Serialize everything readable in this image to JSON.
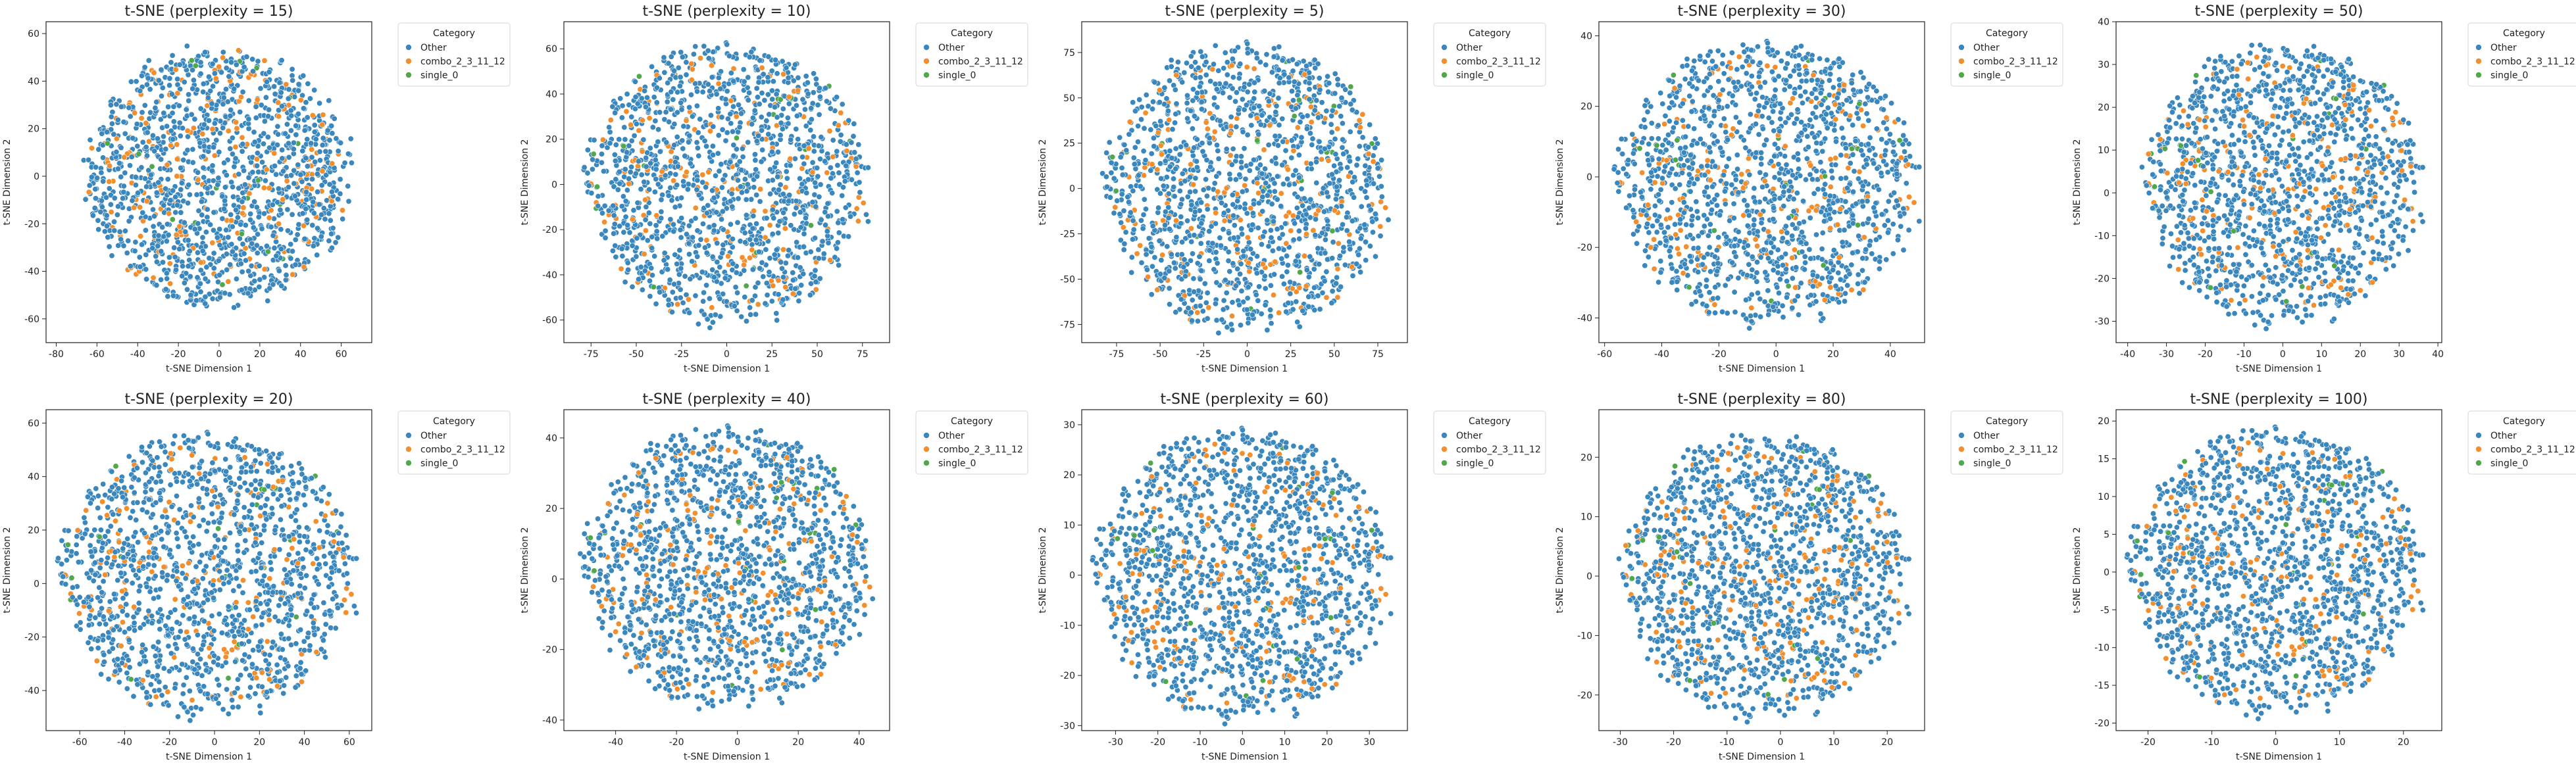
{
  "figure": {
    "colors": {
      "Other": "#3a87be",
      "combo_2_3_11_12": "#f28e2b",
      "single_0": "#4fa84a"
    }
  },
  "chart_data": [
    {
      "type": "scatter",
      "title": "t-SNE (perplexity = 15)",
      "xlabel": "t-SNE Dimension 1",
      "ylabel": "t-SNE Dimension 2",
      "xlim": [
        -85,
        75
      ],
      "ylim": [
        -70,
        65
      ],
      "xticks": [
        -80,
        -60,
        -40,
        -20,
        0,
        20,
        40,
        60
      ],
      "yticks": [
        -60,
        -40,
        -20,
        0,
        20,
        40,
        60
      ],
      "legend": {
        "title": "Category",
        "entries": [
          "Other",
          "combo_2_3_11_12",
          "single_0"
        ],
        "placement": "outside-upper-right"
      },
      "cloud": {
        "cx": 0,
        "cy": 0,
        "rx": 65,
        "ry": 55
      }
    },
    {
      "type": "scatter",
      "title": "t-SNE (perplexity = 10)",
      "xlabel": "t-SNE Dimension 1",
      "ylabel": "t-SNE Dimension 2",
      "xlim": [
        -90,
        90
      ],
      "ylim": [
        -70,
        72
      ],
      "xticks": [
        -75,
        -50,
        -25,
        0,
        25,
        50,
        75
      ],
      "yticks": [
        -60,
        -40,
        -20,
        0,
        20,
        40,
        60
      ],
      "legend": {
        "title": "Category",
        "entries": [
          "Other",
          "combo_2_3_11_12",
          "single_0"
        ],
        "placement": "outside-upper-right"
      },
      "cloud": {
        "cx": 0,
        "cy": 0,
        "rx": 78,
        "ry": 62
      }
    },
    {
      "type": "scatter",
      "title": "t-SNE (perplexity = 5)",
      "xlabel": "t-SNE Dimension 1",
      "ylabel": "t-SNE Dimension 2",
      "xlim": [
        -95,
        92
      ],
      "ylim": [
        -85,
        92
      ],
      "xticks": [
        -75,
        -50,
        -25,
        0,
        25,
        50,
        75
      ],
      "yticks": [
        -75,
        -50,
        -25,
        0,
        25,
        50,
        75
      ],
      "legend": {
        "title": "Category",
        "entries": [
          "Other",
          "combo_2_3_11_12",
          "single_0"
        ],
        "placement": "outside-upper-right"
      },
      "cloud": {
        "cx": 0,
        "cy": 0,
        "rx": 82,
        "ry": 80
      }
    },
    {
      "type": "scatter",
      "title": "t-SNE (perplexity = 30)",
      "xlabel": "t-SNE Dimension 1",
      "ylabel": "t-SNE Dimension 2",
      "xlim": [
        -62,
        52
      ],
      "ylim": [
        -47,
        44
      ],
      "xticks": [
        -60,
        -40,
        -20,
        0,
        20,
        40
      ],
      "yticks": [
        -40,
        -20,
        0,
        20,
        40
      ],
      "legend": {
        "title": "Category",
        "entries": [
          "Other",
          "combo_2_3_11_12",
          "single_0"
        ],
        "placement": "outside-upper-right"
      },
      "cloud": {
        "cx": -3,
        "cy": -2,
        "rx": 53,
        "ry": 40
      }
    },
    {
      "type": "scatter",
      "title": "t-SNE (perplexity = 50)",
      "xlabel": "t-SNE Dimension 1",
      "ylabel": "t-SNE Dimension 2",
      "xlim": [
        -43,
        41
      ],
      "ylim": [
        -35,
        40
      ],
      "xticks": [
        -40,
        -30,
        -20,
        -10,
        0,
        10,
        20,
        30,
        40
      ],
      "yticks": [
        -30,
        -20,
        -10,
        0,
        10,
        20,
        30,
        40
      ],
      "legend": {
        "title": "Category",
        "entries": [
          "Other",
          "combo_2_3_11_12",
          "single_0"
        ],
        "placement": "outside-upper-right"
      },
      "cloud": {
        "cx": 0,
        "cy": 2,
        "rx": 36,
        "ry": 33
      }
    },
    {
      "type": "scatter",
      "title": "t-SNE (perplexity = 20)",
      "xlabel": "t-SNE Dimension 1",
      "ylabel": "t-SNE Dimension 2",
      "xlim": [
        -75,
        70
      ],
      "ylim": [
        -55,
        65
      ],
      "xticks": [
        -60,
        -40,
        -20,
        0,
        20,
        40,
        60
      ],
      "yticks": [
        -40,
        -20,
        0,
        20,
        40,
        60
      ],
      "legend": {
        "title": "Category",
        "entries": [
          "Other",
          "combo_2_3_11_12",
          "single_0"
        ],
        "placement": "outside-upper-right"
      },
      "cloud": {
        "cx": -3,
        "cy": 3,
        "rx": 66,
        "ry": 53
      }
    },
    {
      "type": "scatter",
      "title": "t-SNE (perplexity = 40)",
      "xlabel": "t-SNE Dimension 1",
      "ylabel": "t-SNE Dimension 2",
      "xlim": [
        -57,
        50
      ],
      "ylim": [
        -43,
        48
      ],
      "xticks": [
        -40,
        -20,
        0,
        20,
        40
      ],
      "yticks": [
        -40,
        -20,
        0,
        20,
        40
      ],
      "legend": {
        "title": "Category",
        "entries": [
          "Other",
          "combo_2_3_11_12",
          "single_0"
        ],
        "placement": "outside-upper-right"
      },
      "cloud": {
        "cx": -3,
        "cy": 3,
        "rx": 48,
        "ry": 40
      }
    },
    {
      "type": "scatter",
      "title": "t-SNE (perplexity = 60)",
      "xlabel": "t-SNE Dimension 1",
      "ylabel": "t-SNE Dimension 2",
      "xlim": [
        -38,
        39
      ],
      "ylim": [
        -31,
        33
      ],
      "xticks": [
        -30,
        -20,
        -10,
        0,
        10,
        20,
        30
      ],
      "yticks": [
        -30,
        -20,
        -10,
        0,
        10,
        20,
        30
      ],
      "legend": {
        "title": "Category",
        "entries": [
          "Other",
          "combo_2_3_11_12",
          "single_0"
        ],
        "placement": "outside-upper-right"
      },
      "cloud": {
        "cx": 0,
        "cy": 0,
        "rx": 35,
        "ry": 29
      }
    },
    {
      "type": "scatter",
      "title": "t-SNE (perplexity = 80)",
      "xlabel": "t-SNE Dimension 1",
      "ylabel": "t-SNE Dimension 2",
      "xlim": [
        -34,
        27
      ],
      "ylim": [
        -26,
        28
      ],
      "xticks": [
        -30,
        -20,
        -10,
        0,
        10,
        20
      ],
      "yticks": [
        -20,
        -10,
        0,
        10,
        20
      ],
      "legend": {
        "title": "Category",
        "entries": [
          "Other",
          "combo_2_3_11_12",
          "single_0"
        ],
        "placement": "outside-upper-right"
      },
      "cloud": {
        "cx": -3,
        "cy": 0,
        "rx": 27,
        "ry": 24
      }
    },
    {
      "type": "scatter",
      "title": "t-SNE (perplexity = 100)",
      "xlabel": "t-SNE Dimension 1",
      "ylabel": "t-SNE Dimension 2",
      "xlim": [
        -25,
        26
      ],
      "ylim": [
        -21,
        21.5
      ],
      "xticks": [
        -20,
        -10,
        0,
        10,
        20
      ],
      "yticks": [
        -20,
        -15,
        -10,
        -5,
        0,
        5,
        10,
        15,
        20
      ],
      "legend": {
        "title": "Category",
        "entries": [
          "Other",
          "combo_2_3_11_12",
          "single_0"
        ],
        "placement": "outside-upper-right"
      },
      "cloud": {
        "cx": 0,
        "cy": 0,
        "rx": 23,
        "ry": 19
      }
    }
  ]
}
